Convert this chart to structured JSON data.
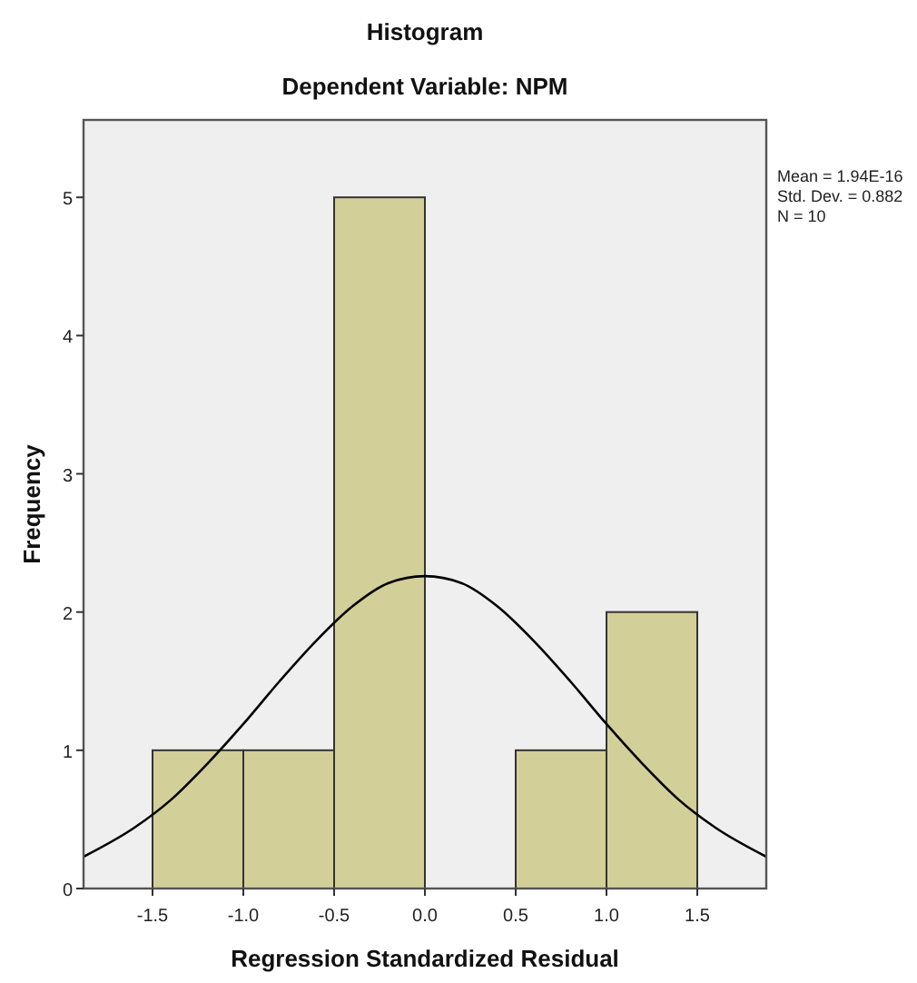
{
  "chart_data": {
    "type": "histogram",
    "title": "Histogram",
    "subtitle": "Dependent Variable: NPM",
    "xlabel": "Regression Standardized Residual",
    "ylabel": "Frequency",
    "bins": [
      -1.5,
      -1.0,
      -0.5,
      0,
      0.5,
      1.0,
      1.5
    ],
    "values": [
      1,
      1,
      5,
      0,
      1,
      2
    ],
    "color": "#d3cf98",
    "series": [
      {
        "type": "line",
        "color": "#000000",
        "x": [
          -1.88,
          -1.6,
          -1.4,
          -1.2,
          -1.0,
          -0.8,
          -0.6,
          -0.4,
          -0.2,
          0,
          0.2,
          0.4,
          0.6,
          0.8,
          1.0,
          1.2,
          1.4,
          1.6,
          1.88
        ],
        "values": [
          0.23,
          0.44,
          0.64,
          0.9,
          1.19,
          1.5,
          1.79,
          2.04,
          2.21,
          2.26,
          2.21,
          2.04,
          1.79,
          1.5,
          1.19,
          0.9,
          0.64,
          0.44,
          0.23
        ]
      }
    ],
    "xlim": [
      -1.88,
      1.88
    ],
    "ylim": [
      0,
      5.56
    ],
    "xticks": [
      {
        "value": -1.5,
        "label": "-1.5"
      },
      {
        "value": -1,
        "label": "-1.0"
      },
      {
        "value": -0.5,
        "label": "-0.5"
      },
      {
        "value": 0,
        "label": "0.0"
      },
      {
        "value": 0.5,
        "label": "0.5"
      },
      {
        "value": 1,
        "label": "1.0"
      },
      {
        "value": 1.5,
        "label": "1.5"
      }
    ],
    "yticks": [
      0,
      1,
      2,
      3,
      4,
      5
    ],
    "annotations": [
      "Mean = 1.94E-16",
      "Std. Dev. = 0.882",
      "N = 10"
    ],
    "grid": false
  }
}
